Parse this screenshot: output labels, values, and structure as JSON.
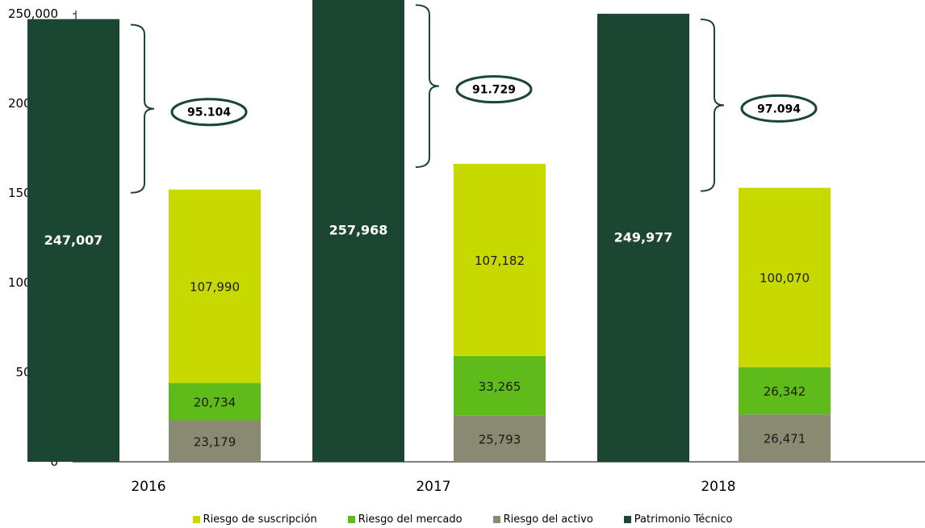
{
  "chart_data": {
    "type": "bar",
    "categories": [
      "2016",
      "2017",
      "2018"
    ],
    "ylim": [
      0,
      250000
    ],
    "yticks": [
      "0",
      "50,000",
      "100,000",
      "150,000",
      "200,000",
      "250,000"
    ],
    "grid": false,
    "legend_position": "bottom",
    "series": [
      {
        "name": "Patrimonio Técnico",
        "color": "#1b4631",
        "values": [
          247007,
          257968,
          249977
        ],
        "labels": [
          "247,007",
          "257,968",
          "249,977"
        ]
      },
      {
        "name": "Riesgo del activo",
        "color": "#8a8a72",
        "values": [
          23179,
          25793,
          26471
        ],
        "labels": [
          "23,179",
          "25,793",
          "26,471"
        ]
      },
      {
        "name": "Riesgo del mercado",
        "color": "#5fbb1a",
        "values": [
          20734,
          33265,
          26342
        ],
        "labels": [
          "20,734",
          "33,265",
          "26,342"
        ]
      },
      {
        "name": "Riesgo de suscripción",
        "color": "#c8d900",
        "values": [
          107990,
          107182,
          100070
        ],
        "labels": [
          "107,990",
          "107,182",
          "100,070"
        ]
      }
    ],
    "annotations": [
      "95.104",
      "91.729",
      "97.094"
    ],
    "legend_order": [
      "Riesgo de suscripción",
      "Riesgo del mercado",
      "Riesgo del activo",
      "Patrimonio Técnico"
    ]
  }
}
